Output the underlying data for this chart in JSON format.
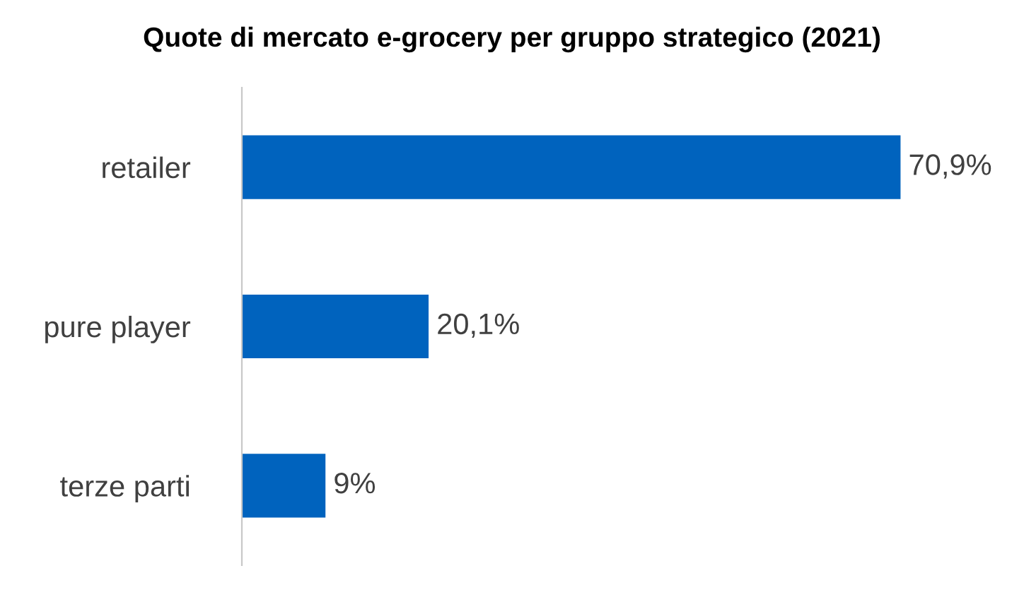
{
  "chart_data": {
    "type": "bar",
    "orientation": "horizontal",
    "title": "Quote di mercato e-grocery per gruppo strategico (2021)",
    "categories": [
      "retailer",
      "pure player",
      "terze parti"
    ],
    "values": [
      70.9,
      20.1,
      9
    ],
    "value_labels": [
      "70,9%",
      "20,1%",
      "9%"
    ],
    "color": "#0063be",
    "tick_labels": "y",
    "grid": false,
    "legend": false
  }
}
